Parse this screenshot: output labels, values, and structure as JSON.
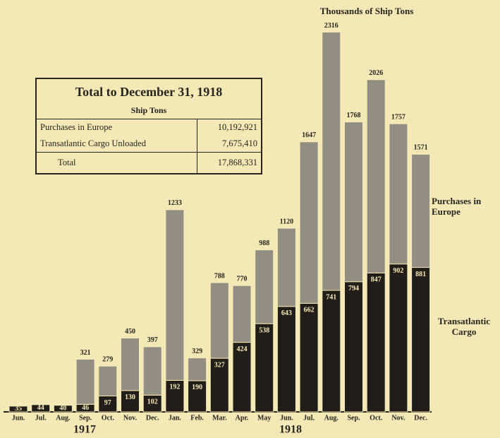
{
  "chart_data": {
    "type": "stacked_bar",
    "title": "Thousands of Ship Tons",
    "categories": [
      "Jun.",
      "Jul.",
      "Aug.",
      "Sep.",
      "Oct.",
      "Nov.",
      "Dec.",
      "Jan.",
      "Feb.",
      "Mar.",
      "Apr.",
      "May",
      "Jun.",
      "Jul.",
      "Aug.",
      "Sep.",
      "Oct.",
      "Nov.",
      "Dec."
    ],
    "year_labels": [
      "1917",
      "1918"
    ],
    "series": [
      {
        "name": "Transatlantic Cargo",
        "color": "#221d19",
        "values": [
          35,
          44,
          40,
          46,
          97,
          130,
          102,
          192,
          190,
          327,
          424,
          538,
          643,
          662,
          741,
          794,
          847,
          902,
          881
        ]
      },
      {
        "name": "Purchases in Europe",
        "color": "#948e82",
        "values": [
          null,
          null,
          null,
          275,
          182,
          320,
          295,
          1041,
          139,
          461,
          346,
          450,
          477,
          985,
          1575,
          974,
          1179,
          855,
          690
        ]
      }
    ],
    "totals": [
      null,
      null,
      null,
      321,
      279,
      450,
      397,
      1233,
      329,
      788,
      770,
      988,
      1120,
      1647,
      2316,
      1768,
      2026,
      1757,
      1571
    ],
    "ylim": [
      0,
      2400
    ]
  },
  "inset": {
    "title": "Total to December 31, 1918",
    "subtitle": "Ship Tons",
    "rows": [
      [
        "Purchases in Europe",
        "10,192,921"
      ],
      [
        "Transatlantic Cargo Unloaded",
        "7,675,410"
      ],
      [
        "Total",
        "17,868,331"
      ]
    ]
  }
}
